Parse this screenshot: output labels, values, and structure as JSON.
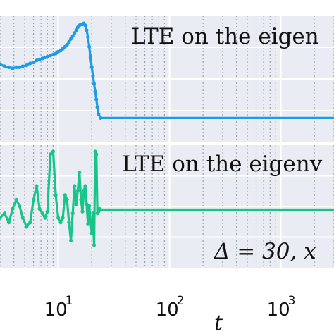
{
  "colors": {
    "panel_bg": "#e9ecf3",
    "grid_major": "#ffffff",
    "grid_minor": "#9aa0aa",
    "top_series": "#1e9be8",
    "bottom_series": "#17c48a"
  },
  "chart_data": [
    {
      "type": "line",
      "panel": "top",
      "annotation": "LTE on the eigen",
      "xscale": "log",
      "xlim": [
        3.0,
        5000
      ],
      "ylim": [
        -0.25,
        1.05
      ],
      "grid": true,
      "series": [
        {
          "x": [
            3.0,
            3.3,
            3.6,
            3.9,
            4.2,
            4.5,
            4.8,
            5.2,
            5.6,
            6.0,
            6.4,
            6.8,
            7.2,
            7.6,
            8.0,
            8.5,
            9.0,
            9.5,
            10.0,
            10.5,
            11.0,
            11.5,
            12.0,
            12.5,
            13.0,
            13.5,
            14.0,
            14.5,
            15.0,
            15.5,
            16.0,
            16.5,
            17.0,
            17.5,
            18.0,
            18.5,
            19.0,
            19.5,
            20.0,
            20.5,
            21.0,
            21.5,
            22.0,
            22.5,
            23.0,
            24,
            30,
            60,
            200,
            1000,
            5000
          ],
          "y": [
            0.55,
            0.53,
            0.52,
            0.51,
            0.52,
            0.52,
            0.53,
            0.54,
            0.56,
            0.57,
            0.59,
            0.6,
            0.61,
            0.62,
            0.63,
            0.64,
            0.65,
            0.66,
            0.68,
            0.69,
            0.71,
            0.73,
            0.75,
            0.78,
            0.81,
            0.84,
            0.87,
            0.9,
            0.93,
            0.95,
            0.96,
            0.96,
            0.97,
            0.95,
            0.9,
            0.83,
            0.73,
            0.62,
            0.52,
            0.43,
            0.35,
            0.27,
            0.19,
            0.11,
            0.04,
            0.0,
            0.0,
            0.0,
            0.0,
            0.0,
            0.0
          ]
        }
      ]
    },
    {
      "type": "line",
      "panel": "bottom",
      "annotation": "LTE on the eigenv",
      "annotation2": "Δ = 30, x",
      "xscale": "log",
      "xlim": [
        3.0,
        5000
      ],
      "ylim": [
        -0.2,
        1.15
      ],
      "grid": true,
      "x_ticks": [
        "10",
        "10",
        "10"
      ],
      "x_tick_exponents": [
        "1",
        "2",
        "3"
      ],
      "xlabel": "t",
      "series": [
        {
          "x": [
            3.0,
            3.3,
            3.6,
            3.9,
            4.2,
            4.5,
            4.8,
            5.2,
            5.6,
            6.0,
            6.4,
            6.8,
            7.2,
            7.6,
            8.0,
            8.5,
            9.0,
            9.5,
            10.0,
            10.5,
            11.0,
            11.5,
            12.0,
            12.5,
            13.0,
            13.5,
            14.0,
            14.5,
            15.0,
            15.5,
            16.0,
            16.5,
            17.0,
            17.5,
            18.0,
            18.5,
            19.0,
            19.5,
            20.0,
            20.5,
            21.0,
            21.5,
            22.0,
            22.5,
            23.0,
            23.5,
            24,
            30,
            60,
            200,
            1000,
            5000
          ],
          "y": [
            0.35,
            0.4,
            0.3,
            0.45,
            0.55,
            0.48,
            0.35,
            0.25,
            0.3,
            0.55,
            0.7,
            0.45,
            0.4,
            0.35,
            0.42,
            1.05,
            1.08,
            0.6,
            0.35,
            0.3,
            0.35,
            0.6,
            0.55,
            0.3,
            0.1,
            0.4,
            0.7,
            0.5,
            0.65,
            0.85,
            0.55,
            0.42,
            0.65,
            0.7,
            0.5,
            0.28,
            0.48,
            0.32,
            0.18,
            0.4,
            0.05,
            1.08,
            1.05,
            0.4,
            0.42,
            0.45,
            0.44,
            0.44,
            0.44,
            0.44,
            0.44,
            0.44
          ]
        }
      ]
    }
  ]
}
